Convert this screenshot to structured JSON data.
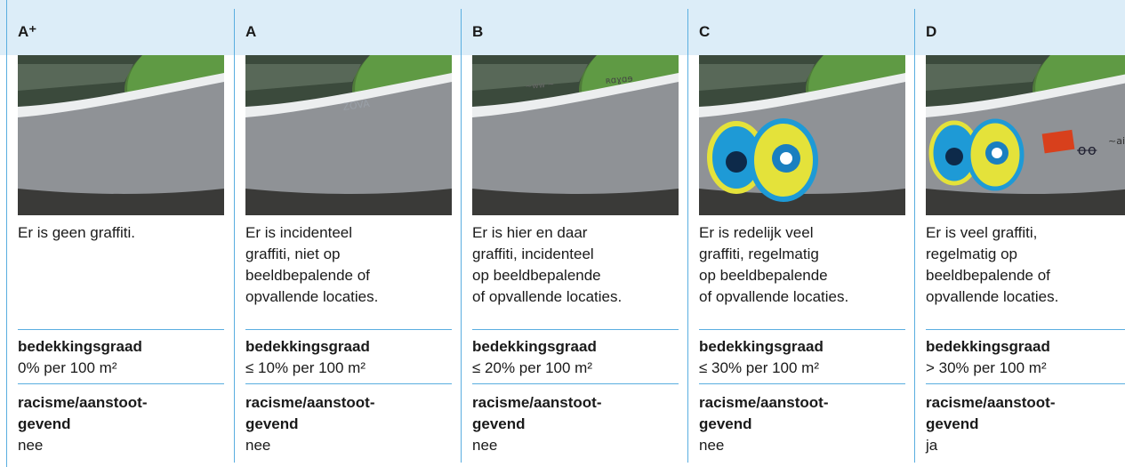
{
  "columns": [
    {
      "grade": "A⁺",
      "description": "Er is geen graffiti.",
      "coverage_label": "bedekkingsgraad",
      "coverage": "0% per 100 m²",
      "offensive_label": "racisme/aanstoot-\ngevend",
      "offensive": "nee"
    },
    {
      "grade": "A",
      "description": "Er is incidenteel\ngraffiti, niet op\nbeeldbepalende of\nopvallende locaties.",
      "coverage_label": "bedekkingsgraad",
      "coverage": "≤ 10% per 100 m²",
      "offensive_label": "racisme/aanstoot-\ngevend",
      "offensive": "nee"
    },
    {
      "grade": "B",
      "description": "Er is hier en daar\ngraffiti, incidenteel\nop beeldbepalende\nof opvallende locaties.",
      "coverage_label": "bedekkingsgraad",
      "coverage": "≤ 20% per 100 m²",
      "offensive_label": "racisme/aanstoot-\ngevend",
      "offensive": "nee"
    },
    {
      "grade": "C",
      "description": "Er is redelijk veel\ngraffiti, regelmatig\nop beeldbepalende\nof opvallende locaties.",
      "coverage_label": "bedekkingsgraad",
      "coverage": "≤ 30% per 100 m²",
      "offensive_label": "racisme/aanstoot-\ngevend",
      "offensive": "nee"
    },
    {
      "grade": "D",
      "description": "Er is veel graffiti,\nregelmatig op\nbeeldbepalende of\nopvallende locaties.",
      "coverage_label": "bedekkingsgraad",
      "coverage": "> 30% per 100 m²",
      "offensive_label": "racisme/aanstoot-\ngevend",
      "offensive": "ja"
    }
  ]
}
